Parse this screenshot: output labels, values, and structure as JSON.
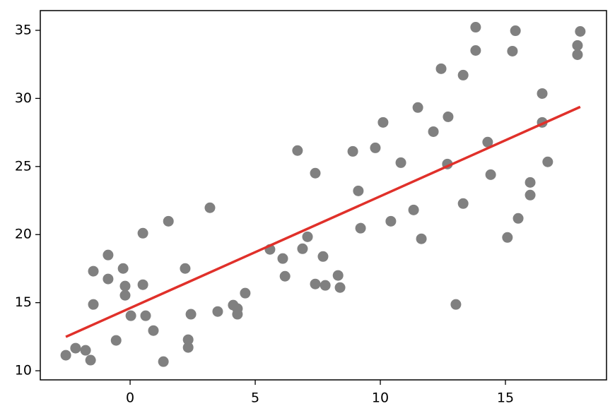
{
  "chart_data": {
    "type": "scatter",
    "xlim": [
      -3.59,
      19.04
    ],
    "ylim": [
      9.33,
      36.45
    ],
    "xticks": [
      0,
      5,
      10,
      15
    ],
    "yticks": [
      10,
      15,
      20,
      25,
      30,
      35
    ],
    "series": [
      {
        "type": "scatter",
        "color": "#808080",
        "x": [
          -2.57,
          -2.18,
          -1.78,
          -1.58,
          -1.47,
          -1.47,
          -0.88,
          -0.88,
          -0.56,
          -0.28,
          -0.2,
          -0.2,
          0.03,
          0.51,
          0.51,
          0.62,
          0.93,
          1.33,
          1.53,
          2.2,
          2.32,
          2.32,
          2.43,
          3.19,
          3.5,
          4.12,
          4.29,
          4.29,
          4.6,
          5.59,
          6.1,
          6.19,
          6.69,
          6.89,
          7.09,
          7.4,
          7.4,
          7.71,
          7.8,
          8.31,
          8.39,
          8.9,
          9.12,
          9.21,
          9.8,
          10.11,
          10.42,
          10.82,
          11.33,
          11.5,
          11.64,
          12.12,
          12.43,
          12.68,
          12.71,
          13.02,
          13.31,
          13.31,
          13.81,
          13.81,
          14.29,
          14.41,
          15.08,
          15.28,
          15.4,
          15.51,
          15.99,
          15.99,
          16.47,
          16.47,
          16.69,
          17.88,
          17.88,
          17.99
        ],
        "values": [
          11.14,
          11.66,
          11.5,
          10.78,
          17.31,
          14.87,
          18.5,
          16.74,
          12.23,
          17.51,
          16.22,
          15.54,
          14.04,
          20.1,
          16.32,
          14.04,
          12.95,
          10.67,
          20.98,
          17.51,
          12.28,
          11.71,
          14.15,
          21.97,
          14.35,
          14.82,
          14.15,
          14.56,
          15.7,
          18.91,
          18.24,
          16.94,
          26.17,
          18.96,
          19.84,
          24.51,
          16.37,
          18.39,
          16.27,
          17.0,
          16.11,
          26.11,
          23.21,
          20.47,
          26.37,
          28.24,
          20.98,
          25.28,
          21.81,
          29.33,
          19.69,
          27.56,
          32.18,
          25.18,
          28.65,
          14.87,
          31.71,
          22.28,
          35.23,
          33.52,
          26.79,
          24.4,
          19.79,
          33.47,
          34.97,
          21.19,
          23.83,
          22.9,
          30.36,
          28.24,
          25.34,
          33.89,
          33.21,
          34.92
        ]
      },
      {
        "type": "line",
        "color": "#e0302a",
        "x": [
          -2.57,
          17.99
        ],
        "values": [
          12.49,
          29.38
        ]
      }
    ]
  }
}
